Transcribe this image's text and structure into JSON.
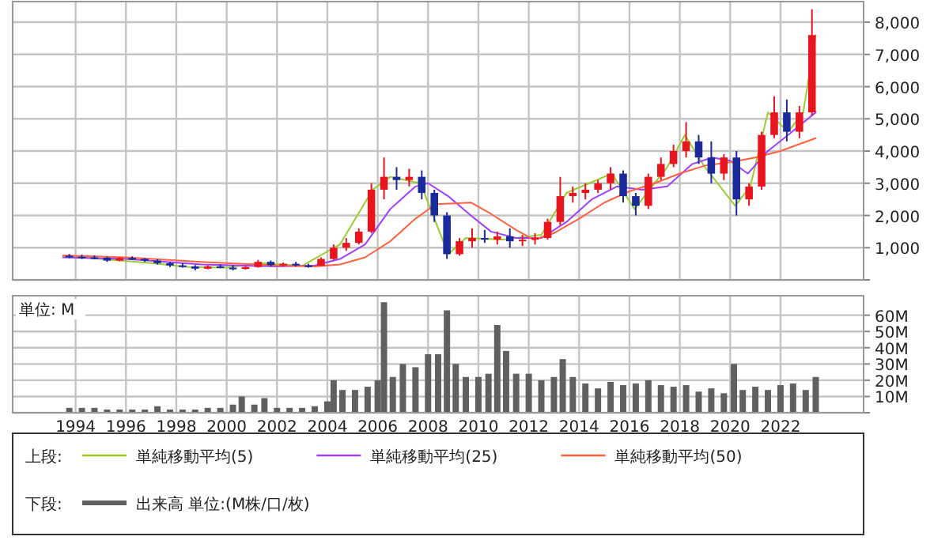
{
  "chart_data": [
    {
      "type": "candlestick",
      "xlim": [
        1991.5,
        2025.3
      ],
      "xticks": [
        1994,
        1996,
        1998,
        2000,
        2002,
        2004,
        2006,
        2008,
        2010,
        2012,
        2014,
        2016,
        2018,
        2020,
        2022
      ],
      "ylim": [
        0,
        8640
      ],
      "yticks": [
        {
          "value": 0,
          "label": null
        },
        {
          "value": 1000,
          "label": "1,000"
        },
        {
          "value": 2000,
          "label": "2,000"
        },
        {
          "value": 3000,
          "label": "3,000"
        },
        {
          "value": 4000,
          "label": "4,000"
        },
        {
          "value": 5000,
          "label": "5,000"
        },
        {
          "value": 6000,
          "label": "6,000"
        },
        {
          "value": 7000,
          "label": "7,000"
        },
        {
          "value": 8000,
          "label": "8,000"
        }
      ],
      "tick_labels": "y",
      "grid": true,
      "legend": "bottom",
      "legend_title": "上段:",
      "x": [
        1993.75,
        1994.25,
        1994.75,
        1995.25,
        1995.75,
        1996.25,
        1996.75,
        1997.25,
        1997.75,
        1998.25,
        1998.75,
        1999.25,
        1999.75,
        2000.25,
        2000.75,
        2001.25,
        2001.75,
        2002.25,
        2002.75,
        2003.25,
        2003.75,
        2004.25,
        2004.75,
        2005.25,
        2005.75,
        2006.25,
        2006.75,
        2007.25,
        2007.75,
        2008.25,
        2008.75,
        2009.25,
        2009.75,
        2010.25,
        2010.75,
        2011.25,
        2011.75,
        2012.25,
        2012.75,
        2013.25,
        2013.75,
        2014.25,
        2014.75,
        2015.25,
        2015.75,
        2016.25,
        2016.75,
        2017.25,
        2017.75,
        2018.25,
        2018.75,
        2019.25,
        2019.75,
        2020.25,
        2020.75,
        2021.25,
        2021.75,
        2022.25,
        2022.75,
        2023.25
      ],
      "ohlc": [
        [
          750,
          800,
          680,
          720
        ],
        [
          720,
          780,
          650,
          700
        ],
        [
          700,
          760,
          640,
          690
        ],
        [
          690,
          720,
          560,
          600
        ],
        [
          600,
          700,
          580,
          680
        ],
        [
          680,
          730,
          620,
          650
        ],
        [
          650,
          680,
          560,
          600
        ],
        [
          600,
          640,
          480,
          520
        ],
        [
          520,
          560,
          400,
          450
        ],
        [
          450,
          520,
          380,
          420
        ],
        [
          420,
          460,
          300,
          350
        ],
        [
          350,
          450,
          330,
          420
        ],
        [
          420,
          480,
          360,
          380
        ],
        [
          380,
          460,
          300,
          340
        ],
        [
          340,
          420,
          320,
          400
        ],
        [
          400,
          620,
          380,
          560
        ],
        [
          560,
          600,
          420,
          460
        ],
        [
          460,
          540,
          420,
          500
        ],
        [
          500,
          560,
          420,
          450
        ],
        [
          450,
          500,
          380,
          440
        ],
        [
          440,
          700,
          430,
          650
        ],
        [
          650,
          1100,
          620,
          1000
        ],
        [
          1000,
          1300,
          900,
          1150
        ],
        [
          1150,
          1600,
          1100,
          1500
        ],
        [
          1500,
          3000,
          1450,
          2800
        ],
        [
          2800,
          3800,
          2500,
          3200
        ],
        [
          3200,
          3500,
          2800,
          3100
        ],
        [
          3100,
          3450,
          2900,
          3200
        ],
        [
          3200,
          3400,
          2500,
          2700
        ],
        [
          2700,
          2800,
          1800,
          2000
        ],
        [
          2000,
          2100,
          650,
          800
        ],
        [
          800,
          1300,
          750,
          1200
        ],
        [
          1200,
          1600,
          1000,
          1300
        ],
        [
          1300,
          1550,
          1150,
          1250
        ],
        [
          1250,
          1500,
          1100,
          1350
        ],
        [
          1350,
          1600,
          1000,
          1200
        ],
        [
          1200,
          1400,
          1050,
          1250
        ],
        [
          1250,
          1450,
          1100,
          1300
        ],
        [
          1300,
          1900,
          1250,
          1800
        ],
        [
          1800,
          3200,
          1700,
          2600
        ],
        [
          2600,
          2900,
          2400,
          2700
        ],
        [
          2700,
          3000,
          2500,
          2800
        ],
        [
          2800,
          3100,
          2700,
          3000
        ],
        [
          3000,
          3500,
          2800,
          3300
        ],
        [
          3300,
          3400,
          2400,
          2600
        ],
        [
          2600,
          2700,
          2000,
          2300
        ],
        [
          2300,
          3300,
          2200,
          3200
        ],
        [
          3200,
          3800,
          3100,
          3600
        ],
        [
          3600,
          4200,
          3500,
          4000
        ],
        [
          4000,
          4900,
          3800,
          4300
        ],
        [
          4300,
          4500,
          3600,
          3800
        ],
        [
          3800,
          4300,
          3000,
          3300
        ],
        [
          3300,
          3900,
          3100,
          3800
        ],
        [
          3800,
          4000,
          2000,
          2500
        ],
        [
          2500,
          3000,
          2300,
          2900
        ],
        [
          2900,
          4600,
          2800,
          4500
        ],
        [
          4500,
          5700,
          4400,
          5200
        ],
        [
          5200,
          5600,
          4300,
          4600
        ],
        [
          4600,
          5400,
          4400,
          5200
        ],
        [
          5200,
          8400,
          5100,
          7600
        ]
      ],
      "colors": [
        "#1a2a9a",
        "#1a2a9a",
        "#1a2a9a",
        "#1a2a9a",
        "#e8141e",
        "#1a2a9a",
        "#1a2a9a",
        "#1a2a9a",
        "#1a2a9a",
        "#1a2a9a",
        "#1a2a9a",
        "#e8141e",
        "#1a2a9a",
        "#1a2a9a",
        "#e8141e",
        "#e8141e",
        "#1a2a9a",
        "#e8141e",
        "#1a2a9a",
        "#1a2a9a",
        "#e8141e",
        "#e8141e",
        "#e8141e",
        "#e8141e",
        "#e8141e",
        "#e8141e",
        "#1a2a9a",
        "#e8141e",
        "#1a2a9a",
        "#1a2a9a",
        "#1a2a9a",
        "#e8141e",
        "#e8141e",
        "#1a2a9a",
        "#e8141e",
        "#1a2a9a",
        "#e8141e",
        "#e8141e",
        "#e8141e",
        "#e8141e",
        "#e8141e",
        "#e8141e",
        "#e8141e",
        "#e8141e",
        "#1a2a9a",
        "#1a2a9a",
        "#e8141e",
        "#e8141e",
        "#e8141e",
        "#e8141e",
        "#1a2a9a",
        "#1a2a9a",
        "#e8141e",
        "#1a2a9a",
        "#e8141e",
        "#e8141e",
        "#e8141e",
        "#1a2a9a",
        "#e8141e",
        "#e8141e"
      ],
      "series": [
        {
          "type": "line",
          "name": "単純移動平均(5)",
          "color": "#9acd32",
          "x": [
            1993.5,
            1995,
            1997,
            1998.5,
            2000,
            2001.3,
            2003,
            2004.5,
            2005.8,
            2006.5,
            2007.7,
            2008.8,
            2009.5,
            2011,
            2012.5,
            2013.5,
            2015.3,
            2016.2,
            2017.5,
            2018.2,
            2019,
            2020.2,
            2020.8,
            2021.5,
            2022.3,
            2022.9,
            2023.4
          ],
          "values": [
            740,
            650,
            520,
            400,
            380,
            520,
            440,
            1100,
            2800,
            3200,
            3000,
            800,
            1300,
            1250,
            1400,
            2700,
            3300,
            2200,
            3500,
            4500,
            3500,
            2300,
            2900,
            5200,
            4600,
            5200,
            7600
          ]
        },
        {
          "type": "line",
          "name": "単純移動平均(25)",
          "color": "#a040ff",
          "x": [
            1993.5,
            1996,
            1999,
            2002,
            2003.5,
            2004.5,
            2005.5,
            2006.5,
            2007.5,
            2008,
            2008.8,
            2009.7,
            2010.5,
            2011.5,
            2012.5,
            2013.5,
            2014.5,
            2015.5,
            2016.5,
            2017.5,
            2018.5,
            2019.3,
            2020,
            2020.7,
            2021.5,
            2022.3,
            2023.4
          ],
          "values": [
            700,
            650,
            480,
            420,
            450,
            650,
            1100,
            2200,
            2900,
            3000,
            2600,
            2000,
            1500,
            1300,
            1300,
            1800,
            2500,
            2900,
            2800,
            2900,
            3600,
            3800,
            3700,
            3300,
            4000,
            4500,
            5200
          ]
        },
        {
          "type": "line",
          "name": "単純移動平均(50)",
          "color": "#ff6040",
          "x": [
            1993.5,
            1996,
            1999,
            2002,
            2003.5,
            2004.5,
            2005.5,
            2006.5,
            2007.5,
            2008.3,
            2009.7,
            2010.5,
            2011.5,
            2012.2,
            2013,
            2014,
            2015,
            2016,
            2017,
            2018,
            2019,
            2020,
            2021,
            2022,
            2023.4
          ],
          "values": [
            760,
            700,
            560,
            450,
            420,
            480,
            700,
            1200,
            1900,
            2350,
            2400,
            2050,
            1550,
            1250,
            1450,
            1900,
            2400,
            2750,
            3000,
            3300,
            3550,
            3650,
            3800,
            4000,
            4400
          ]
        }
      ]
    },
    {
      "type": "bar",
      "xlim": [
        1991.5,
        2025.3
      ],
      "xticks": [
        1994,
        1996,
        1998,
        2000,
        2002,
        2004,
        2006,
        2008,
        2010,
        2012,
        2014,
        2016,
        2018,
        2020,
        2022
      ],
      "ylim": [
        0,
        72
      ],
      "yticks": [
        {
          "value": 0,
          "label": null
        },
        {
          "value": 10,
          "label": "10M"
        },
        {
          "value": 20,
          "label": "20M"
        },
        {
          "value": 30,
          "label": "30M"
        },
        {
          "value": 40,
          "label": "40M"
        },
        {
          "value": 50,
          "label": "50M"
        },
        {
          "value": 60,
          "label": "60M"
        }
      ],
      "grid": true,
      "legend": "bottom",
      "legend_title": "下段:",
      "annotations": [
        "単位: M"
      ],
      "series": [
        {
          "name": "出来高 単位:(M株/口/枚)",
          "color": "#606060",
          "x": [
            1993.75,
            1994.25,
            1994.75,
            1995.25,
            1995.75,
            1996.25,
            1996.75,
            1997.25,
            1997.75,
            1998.25,
            1998.75,
            1999.25,
            1999.75,
            2000.25,
            2000.6,
            2001.1,
            2001.5,
            2002.0,
            2002.5,
            2003.0,
            2003.5,
            2004.0,
            2004.25,
            2004.6,
            2005.1,
            2005.6,
            2006.0,
            2006.25,
            2006.6,
            2007.0,
            2007.5,
            2008.0,
            2008.4,
            2008.75,
            2009.1,
            2009.5,
            2010.0,
            2010.4,
            2010.75,
            2011.1,
            2011.5,
            2012.0,
            2012.5,
            2013.0,
            2013.35,
            2013.75,
            2014.25,
            2014.75,
            2015.25,
            2015.75,
            2016.25,
            2016.75,
            2017.25,
            2017.75,
            2018.25,
            2018.75,
            2019.25,
            2019.75,
            2020.15,
            2020.5,
            2021.0,
            2021.5,
            2022.0,
            2022.5,
            2023.0,
            2023.4
          ],
          "values": [
            3,
            3,
            3,
            2,
            2,
            2,
            2,
            4,
            2,
            2,
            2,
            3,
            3,
            5,
            10,
            5,
            9,
            3,
            3,
            3,
            4,
            7,
            20,
            14,
            14,
            16,
            20,
            68,
            22,
            30,
            28,
            36,
            36,
            63,
            30,
            22,
            22,
            24,
            54,
            38,
            24,
            24,
            20,
            22,
            33,
            22,
            18,
            15,
            19,
            17,
            18,
            20,
            17,
            16,
            17,
            13,
            15,
            12,
            30,
            14,
            16,
            14,
            17,
            18,
            14,
            22
          ]
        }
      ]
    }
  ]
}
